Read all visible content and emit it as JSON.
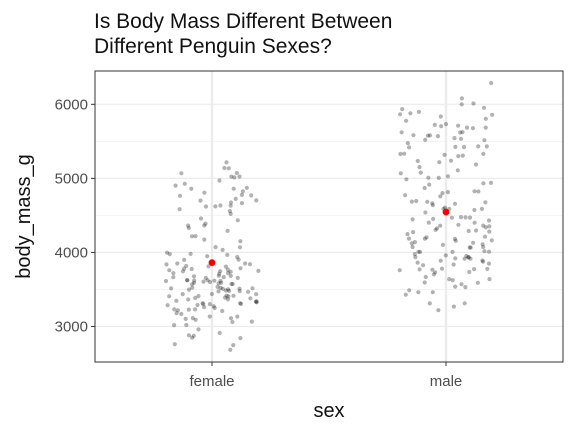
{
  "chart_data": {
    "type": "scatter",
    "title_lines": [
      "Is Body Mass Different Between",
      "Different Penguin Sexes?"
    ],
    "xlabel": "sex",
    "ylabel": "body_mass_g",
    "categories": [
      "female",
      "male"
    ],
    "ylim": [
      2520,
      6450
    ],
    "yticks": [
      3000,
      4000,
      5000,
      6000
    ],
    "grid": true,
    "jitter": true,
    "point_color": "#000000",
    "point_opacity": 0.3,
    "mean_color": "#ff0000",
    "means": [
      {
        "category": "female",
        "value": 3862
      },
      {
        "category": "male",
        "value": 4546
      }
    ],
    "observations": [
      {
        "category": "female",
        "values": [
          5200,
          5180,
          5150,
          5100,
          5050,
          5000,
          5000,
          4950,
          4950,
          4900,
          4900,
          4850,
          4850,
          4800,
          4800,
          4750,
          4750,
          4700,
          4700,
          4700,
          4650,
          4650,
          4650,
          4600,
          4600,
          4550,
          4500,
          4450,
          4400,
          4350,
          4300,
          4250,
          4200,
          4150,
          4150,
          4100,
          4050,
          4000,
          3950,
          3950,
          3900,
          3900,
          3850,
          3850,
          3800,
          3800,
          3800,
          3750,
          3750,
          3750,
          3700,
          3700,
          3700,
          3650,
          3650,
          3650,
          3600,
          3600,
          3600,
          3550,
          3550,
          3550,
          3500,
          3500,
          3500,
          3450,
          3450,
          3450,
          3400,
          3400,
          3400,
          3350,
          3350,
          3350,
          3300,
          3300,
          3300,
          3250,
          3250,
          3200,
          3200,
          3150,
          3150,
          3100,
          3100,
          3050,
          3050,
          3000,
          3000,
          2950,
          2900,
          2900,
          2850,
          2750,
          2700,
          3950,
          3900,
          3850,
          3800,
          3750,
          3700,
          3650,
          3600,
          3550,
          3500,
          3450,
          3400,
          3350,
          3300,
          3250,
          3200,
          3150,
          3100,
          3900,
          3800,
          3700,
          3600,
          3500,
          3400,
          3300,
          3550,
          3450,
          3650,
          3750,
          3850,
          4050,
          4250,
          4450,
          4650,
          4850,
          5050,
          4550,
          4350,
          3600,
          3500,
          3700,
          3400,
          3250,
          3450,
          3550,
          3300,
          3400,
          3200,
          3750,
          3650,
          3800,
          3500,
          3600,
          3400,
          3300,
          3450,
          3150,
          3250,
          3700,
          3550,
          3950,
          3850,
          3050,
          2800,
          2850,
          3350,
          3600
        ]
      },
      {
        "category": "male",
        "values": [
          6300,
          6050,
          6000,
          6000,
          5950,
          5950,
          5850,
          5850,
          5800,
          5800,
          5750,
          5700,
          5700,
          5650,
          5650,
          5600,
          5600,
          5550,
          5550,
          5500,
          5500,
          5450,
          5400,
          5400,
          5350,
          5350,
          5300,
          5300,
          5250,
          5200,
          5150,
          5100,
          5050,
          5000,
          5000,
          4950,
          4900,
          4850,
          4800,
          4750,
          4700,
          4700,
          4650,
          4650,
          4600,
          4600,
          4550,
          4500,
          4500,
          4450,
          4450,
          4400,
          4400,
          4350,
          4350,
          4300,
          4300,
          4250,
          4250,
          4200,
          4200,
          4150,
          4150,
          4100,
          4100,
          4050,
          4050,
          4000,
          4000,
          4000,
          3950,
          3950,
          3950,
          3900,
          3900,
          3900,
          3850,
          3850,
          3800,
          3800,
          3800,
          3750,
          3750,
          3700,
          3700,
          3650,
          3600,
          3550,
          3500,
          3450,
          3400,
          3350,
          3300,
          3250,
          5800,
          5700,
          5600,
          5500,
          5400,
          5300,
          5200,
          4900,
          4800,
          4700,
          4600,
          4400,
          4300,
          4200,
          4100,
          4000,
          3900,
          3800,
          3700,
          3600,
          4250,
          4150,
          4050,
          3950,
          3850,
          4350,
          4450,
          4550,
          4650,
          4750,
          4850,
          5450,
          5550,
          5650,
          5750,
          5850,
          4000,
          3900,
          3950,
          4100,
          4200,
          4300,
          4400,
          4500,
          4600,
          3750,
          3650,
          3550,
          3450,
          3350,
          5100,
          5250,
          5350,
          5000,
          4950,
          4800,
          4700,
          4050,
          3850,
          3700,
          3600,
          4150,
          4250,
          4350,
          5900,
          5650,
          5450,
          3500
        ]
      }
    ]
  }
}
